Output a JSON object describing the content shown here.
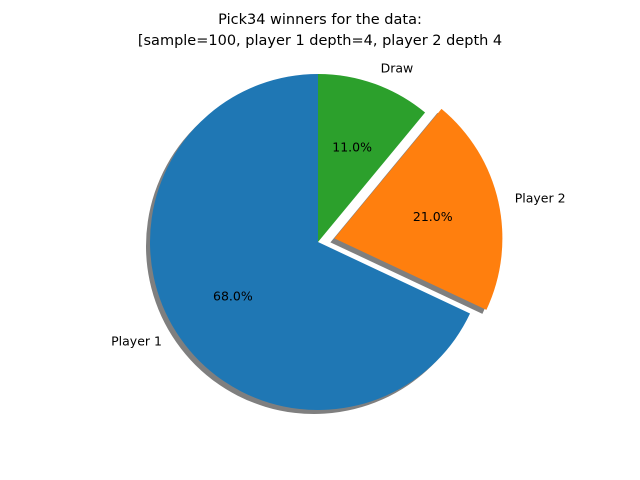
{
  "chart_data": {
    "type": "pie",
    "title": "Pick34 winners for the data:\n[sample=100, player 1 depth=4, player 2 depth 4",
    "title_lines": [
      "Pick34 winners for the data:",
      "[sample=100, player 1 depth=4, player 2 depth 4"
    ],
    "start_angle_deg": 90,
    "direction": "counterclockwise",
    "shadow": true,
    "slices": [
      {
        "label": "Player 1",
        "value": 68.0,
        "pct_label": "68.0%",
        "color": "#1f77b4",
        "explode": 0
      },
      {
        "label": "Player 2",
        "value": 21.0,
        "pct_label": "21.0%",
        "color": "#ff7f0e",
        "explode": 0.1
      },
      {
        "label": "Draw",
        "value": 11.0,
        "pct_label": "11.0%",
        "color": "#2ca02c",
        "explode": 0
      }
    ]
  }
}
